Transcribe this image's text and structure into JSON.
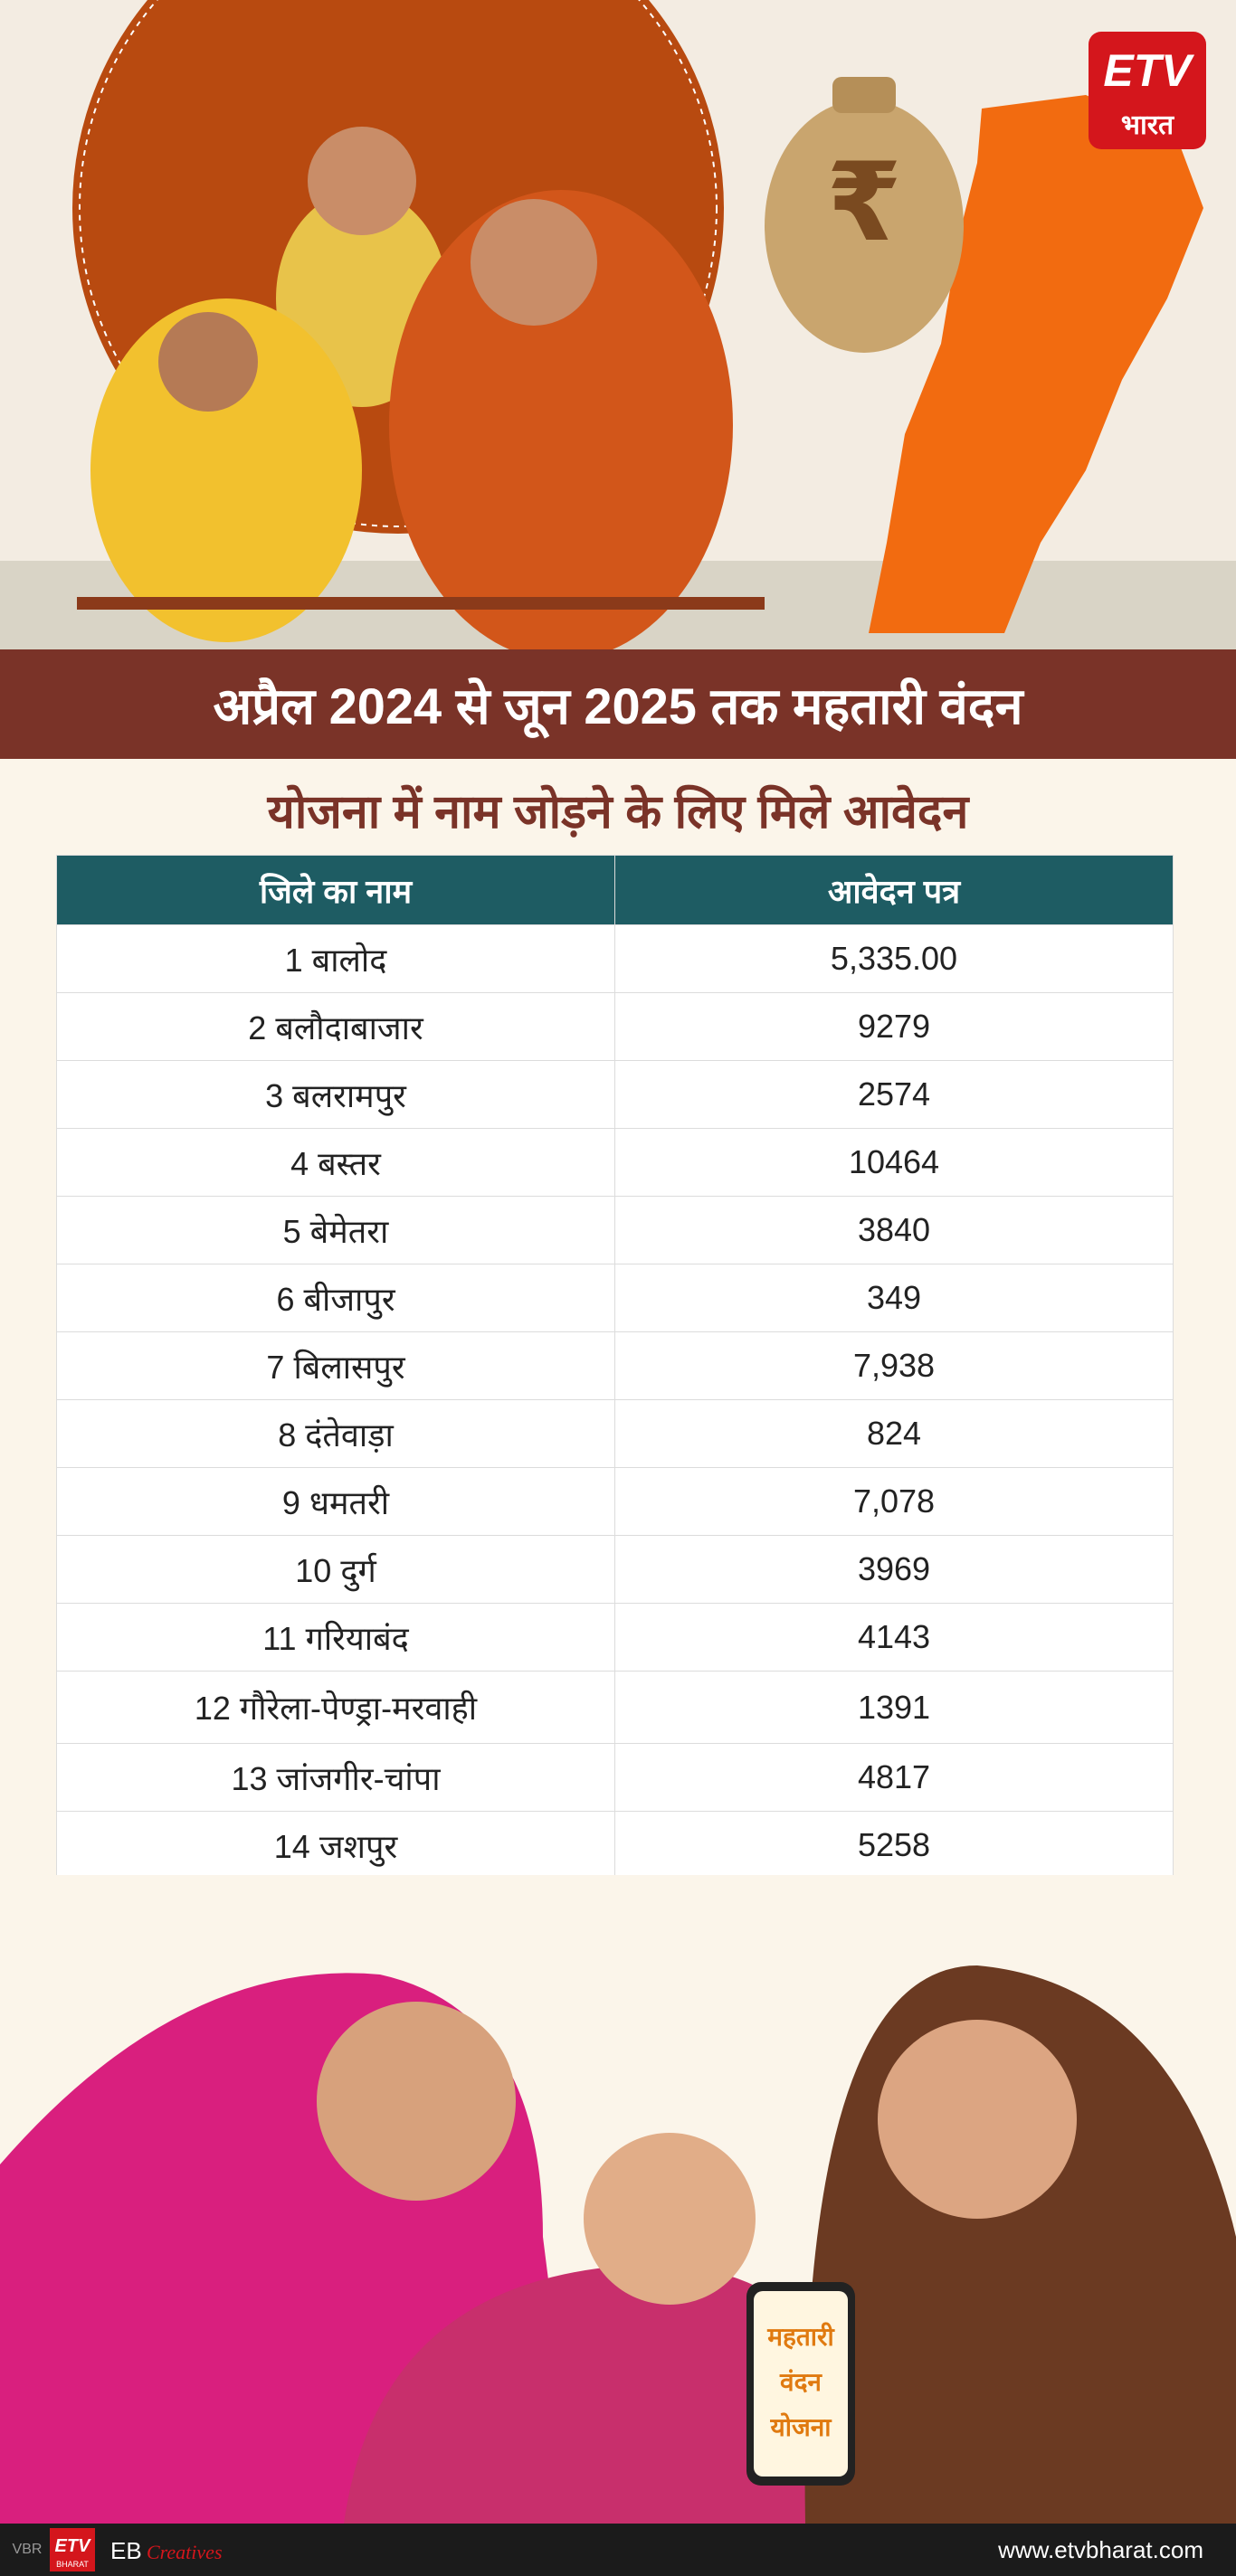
{
  "header": {
    "logo": {
      "mark": "ETV",
      "text": "भारत"
    },
    "bag_symbol": "₹",
    "title": "अप्रैल 2024 से जून 2025 तक महतारी वंदन",
    "subtitle": "योजना में नाम जोड़ने के लिए मिले आवेदन"
  },
  "table": {
    "columns": [
      "जिले का नाम",
      "आवेदन पत्र"
    ],
    "rows": [
      [
        "1 बालोद",
        "5,335.00"
      ],
      [
        "2 बलौदाबाजार",
        "9279"
      ],
      [
        "3 बलरामपुर",
        "2574"
      ],
      [
        "4 बस्तर",
        "10464"
      ],
      [
        "5 बेमेतरा",
        "3840"
      ],
      [
        "6 बीजापुर",
        "349"
      ],
      [
        "7 बिलासपुर",
        "7,938"
      ],
      [
        "8 दंतेवाड़ा",
        "824"
      ],
      [
        "9 धमतरी",
        "7,078"
      ],
      [
        "10 दुर्ग",
        "3969"
      ],
      [
        "11 गरियाबंद",
        "4143"
      ],
      [
        "12 गौरेला-पेण्ड्रा-मरवाही",
        "1391"
      ],
      [
        "13 जांजगीर-चांपा",
        "4817"
      ],
      [
        "14 जशपुर",
        "5258"
      ]
    ]
  },
  "illustration": {
    "phone_text": [
      "महतारी",
      "वंदन",
      "योजना"
    ]
  },
  "footer": {
    "side_text": "VBR",
    "logo": "ETV",
    "logo_sub": "BHARAT",
    "brand": "EB",
    "brand_script": "Creatives",
    "url": "www.etvbharat.com"
  }
}
